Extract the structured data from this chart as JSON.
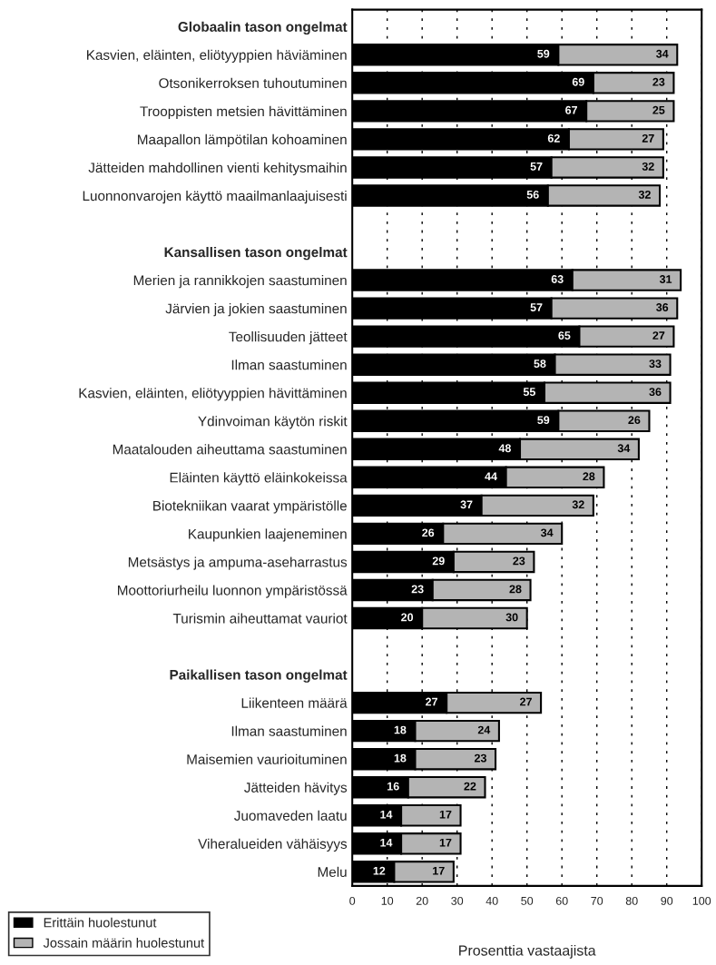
{
  "chart_data": {
    "type": "bar",
    "orientation": "horizontal",
    "stacked": true,
    "categories": [
      "Globaalin tason ongelmat",
      "Kasvien, eläinten, eliötyyppien häviäminen",
      "Otsonikerroksen tuhoutuminen",
      "Trooppisten metsien hävittäminen",
      "Maapallon lämpötilan kohoaminen",
      "Jätteiden mahdollinen vienti kehitysmaihin",
      "Luonnonvarojen käyttö maailmanlaajuisesti",
      null,
      "Kansallisen tason ongelmat",
      "Merien ja rannikkojen saastuminen",
      "Järvien ja jokien saastuminen",
      "Teollisuuden jätteet",
      "Ilman saastuminen",
      "Kasvien, eläinten, eliötyyppien hävittäminen",
      "Ydinvoiman käytön riskit",
      "Maatalouden aiheuttama saastuminen",
      "Eläinten käyttö eläinkokeissa",
      "Biotekniikan vaarat ympäristölle",
      "Kaupunkien laajeneminen",
      "Metsästys ja ampuma-aseharrastus",
      "Moottoriurheilu luonnon ympäristössä",
      "Turismin aiheuttamat vauriot",
      null,
      "Paikallisen tason ongelmat",
      "Liikenteen määrä",
      "Ilman saastuminen",
      "Maisemien vaurioituminen",
      "Jätteiden hävitys",
      "Juomaveden laatu",
      "Viheralueiden vähäisyys",
      "Melu"
    ],
    "series": [
      {
        "name": "Erittäin huolestunut",
        "color": "#000000",
        "values": [
          null,
          59,
          69,
          67,
          62,
          57,
          56,
          null,
          null,
          63,
          57,
          65,
          58,
          55,
          59,
          48,
          44,
          37,
          26,
          29,
          23,
          20,
          null,
          null,
          27,
          18,
          18,
          16,
          14,
          14,
          12
        ]
      },
      {
        "name": "Jossain määrin huolestunut",
        "color": "#b4b4b4",
        "values": [
          null,
          34,
          23,
          25,
          27,
          32,
          32,
          null,
          null,
          31,
          36,
          27,
          33,
          36,
          26,
          34,
          28,
          32,
          34,
          23,
          28,
          30,
          null,
          null,
          27,
          24,
          23,
          22,
          17,
          17,
          17
        ]
      }
    ],
    "xlim": [
      0,
      100
    ],
    "xticks": [
      0,
      10,
      20,
      30,
      40,
      50,
      60,
      70,
      80,
      90,
      100
    ],
    "xlabel": "Prosenttia vastaajista",
    "grid": "x",
    "legend": "bottom left",
    "data_labels": true
  }
}
